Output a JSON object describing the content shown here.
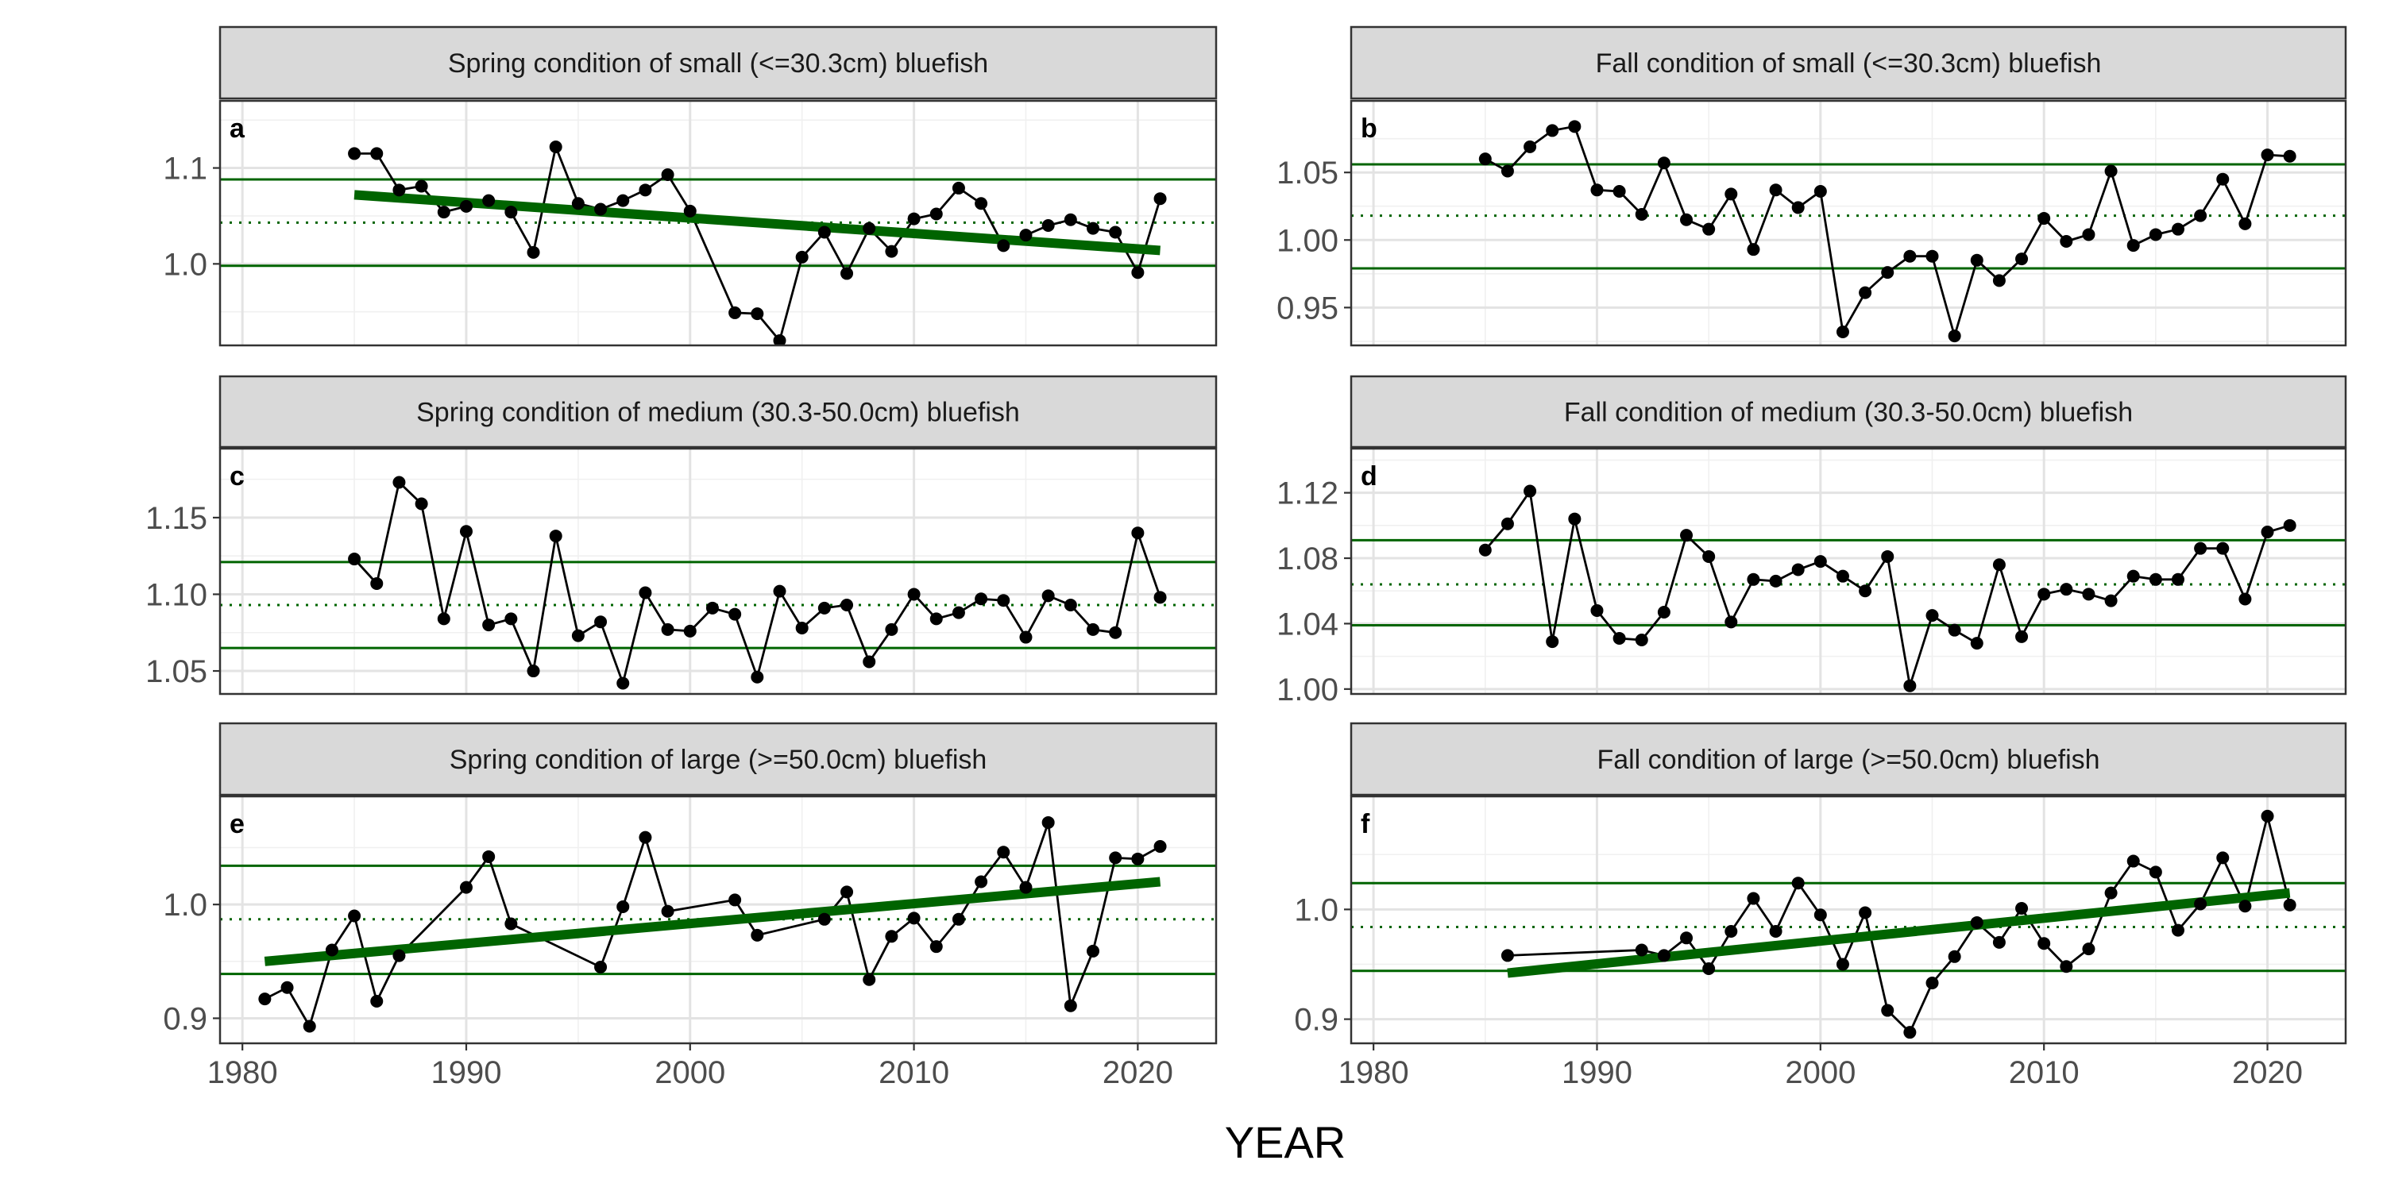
{
  "figure": {
    "x_axis_title": "YEAR"
  },
  "chart_data": [
    {
      "id": "a",
      "type": "line",
      "title": "Spring condition of small (<=30.3cm) bluefish",
      "panel_label": "a",
      "xlim": [
        1979,
        2023.5
      ],
      "x_ticks": [
        1980,
        1990,
        2000,
        2010,
        2020
      ],
      "ylim": [
        0.915,
        1.17
      ],
      "y_ticks": [
        1.0,
        1.1
      ],
      "y_tick_labels": [
        "1.0",
        "1.1"
      ],
      "reference_lines": {
        "upper": 1.088,
        "mean": 1.043,
        "lower": 0.998
      },
      "trend": {
        "x": [
          1985,
          2021
        ],
        "y": [
          1.072,
          1.014
        ]
      },
      "series": [
        {
          "x": [
            1985,
            1986,
            1987,
            1988,
            1989,
            1990,
            1991,
            1992,
            1993,
            1994,
            1995,
            1996,
            1997,
            1998,
            1999,
            2000,
            2002,
            2003,
            2004,
            2005,
            2006,
            2007,
            2008,
            2009,
            2010,
            2011,
            2012,
            2013,
            2014,
            2015,
            2016,
            2017,
            2018,
            2019,
            2020,
            2021
          ],
          "y": [
            1.115,
            1.115,
            1.077,
            1.081,
            1.054,
            1.06,
            1.066,
            1.054,
            1.012,
            1.122,
            1.063,
            1.057,
            1.066,
            1.077,
            1.093,
            1.055,
            0.949,
            0.948,
            0.92,
            1.007,
            1.033,
            0.99,
            1.037,
            1.013,
            1.047,
            1.052,
            1.079,
            1.063,
            1.019,
            1.03,
            1.04,
            1.046,
            1.037,
            1.033,
            0.991,
            1.068
          ]
        }
      ],
      "colors": {
        "reference": "#006400",
        "series": "#000000"
      }
    },
    {
      "id": "b",
      "type": "line",
      "title": "Fall condition of small (<=30.3cm) bluefish",
      "panel_label": "b",
      "xlim": [
        1979,
        2023.5
      ],
      "x_ticks": [
        1980,
        1990,
        2000,
        2010,
        2020
      ],
      "ylim": [
        0.922,
        1.103
      ],
      "y_ticks": [
        0.95,
        1.0,
        1.05
      ],
      "y_tick_labels": [
        "0.95",
        "1.00",
        "1.05"
      ],
      "reference_lines": {
        "upper": 1.056,
        "mean": 1.018,
        "lower": 0.979
      },
      "trend": null,
      "series": [
        {
          "x": [
            1985,
            1986,
            1987,
            1988,
            1989,
            1990,
            1991,
            1992,
            1993,
            1994,
            1995,
            1996,
            1997,
            1998,
            1999,
            2000,
            2001,
            2002,
            2003,
            2004,
            2005,
            2006,
            2007,
            2008,
            2009,
            2010,
            2011,
            2012,
            2013,
            2014,
            2015,
            2016,
            2017,
            2018,
            2019,
            2020,
            2021
          ],
          "y": [
            1.06,
            1.051,
            1.069,
            1.081,
            1.084,
            1.037,
            1.036,
            1.019,
            1.057,
            1.015,
            1.008,
            1.034,
            0.993,
            1.037,
            1.024,
            1.036,
            0.932,
            0.961,
            0.976,
            0.988,
            0.988,
            0.929,
            0.985,
            0.97,
            0.986,
            1.016,
            0.999,
            1.004,
            1.051,
            0.996,
            1.004,
            1.008,
            1.018,
            1.045,
            1.012,
            1.063,
            1.062
          ]
        }
      ],
      "colors": {
        "reference": "#006400",
        "series": "#000000"
      }
    },
    {
      "id": "c",
      "type": "line",
      "title": "Spring condition of medium (30.3-50.0cm) bluefish",
      "panel_label": "c",
      "xlim": [
        1979,
        2023.5
      ],
      "x_ticks": [
        1980,
        1990,
        2000,
        2010,
        2020
      ],
      "ylim": [
        1.035,
        1.195
      ],
      "y_ticks": [
        1.05,
        1.1,
        1.15
      ],
      "y_tick_labels": [
        "1.05",
        "1.10",
        "1.15"
      ],
      "reference_lines": {
        "upper": 1.121,
        "mean": 1.093,
        "lower": 1.065
      },
      "trend": null,
      "series": [
        {
          "x": [
            1985,
            1986,
            1987,
            1988,
            1989,
            1990,
            1991,
            1992,
            1993,
            1994,
            1995,
            1996,
            1997,
            1998,
            1999,
            2000,
            2001,
            2002,
            2003,
            2004,
            2005,
            2006,
            2007,
            2008,
            2009,
            2010,
            2011,
            2012,
            2013,
            2014,
            2015,
            2016,
            2017,
            2018,
            2019,
            2020,
            2021
          ],
          "y": [
            1.123,
            1.107,
            1.173,
            1.159,
            1.084,
            1.141,
            1.08,
            1.084,
            1.05,
            1.138,
            1.073,
            1.082,
            1.042,
            1.101,
            1.077,
            1.076,
            1.091,
            1.087,
            1.046,
            1.102,
            1.078,
            1.091,
            1.093,
            1.056,
            1.077,
            1.1,
            1.084,
            1.088,
            1.097,
            1.096,
            1.072,
            1.099,
            1.093,
            1.077,
            1.075,
            1.14,
            1.098
          ]
        }
      ],
      "colors": {
        "reference": "#006400",
        "series": "#000000"
      }
    },
    {
      "id": "d",
      "type": "line",
      "title": "Fall condition of medium (30.3-50.0cm) bluefish",
      "panel_label": "d",
      "xlim": [
        1979,
        2023.5
      ],
      "x_ticks": [
        1980,
        1990,
        2000,
        2010,
        2020
      ],
      "ylim": [
        0.997,
        1.147
      ],
      "y_ticks": [
        1.0,
        1.04,
        1.08,
        1.12
      ],
      "y_tick_labels": [
        "1.00",
        "1.04",
        "1.08",
        "1.12"
      ],
      "reference_lines": {
        "upper": 1.091,
        "mean": 1.064,
        "lower": 1.039
      },
      "trend": null,
      "series": [
        {
          "x": [
            1985,
            1986,
            1987,
            1988,
            1989,
            1990,
            1991,
            1992,
            1993,
            1994,
            1995,
            1996,
            1997,
            1998,
            1999,
            2000,
            2001,
            2002,
            2003,
            2004,
            2005,
            2006,
            2007,
            2008,
            2009,
            2010,
            2011,
            2012,
            2013,
            2014,
            2015,
            2016,
            2017,
            2018,
            2019,
            2020,
            2021
          ],
          "y": [
            1.085,
            1.101,
            1.121,
            1.029,
            1.104,
            1.048,
            1.031,
            1.03,
            1.047,
            1.094,
            1.081,
            1.041,
            1.067,
            1.066,
            1.073,
            1.078,
            1.069,
            1.06,
            1.081,
            1.002,
            1.045,
            1.036,
            1.028,
            1.076,
            1.032,
            1.058,
            1.061,
            1.058,
            1.054,
            1.069,
            1.067,
            1.067,
            1.086,
            1.086,
            1.055,
            1.096,
            1.1
          ]
        }
      ],
      "colors": {
        "reference": "#006400",
        "series": "#000000"
      }
    },
    {
      "id": "e",
      "type": "line",
      "title": "Spring condition of large (>=50.0cm) bluefish",
      "panel_label": "e",
      "xlim": [
        1979,
        2023.5
      ],
      "x_ticks": [
        1980,
        1990,
        2000,
        2010,
        2020
      ],
      "ylim": [
        0.878,
        1.095
      ],
      "y_ticks": [
        0.9,
        1.0
      ],
      "y_tick_labels": [
        "0.9",
        "1.0"
      ],
      "reference_lines": {
        "upper": 1.034,
        "mean": 0.987,
        "lower": 0.939
      },
      "trend": {
        "x": [
          1981,
          2021
        ],
        "y": [
          0.95,
          1.02
        ]
      },
      "series": [
        {
          "x": [
            1981,
            1982,
            1983,
            1984,
            1985,
            1986,
            1987,
            1990,
            1991,
            1992,
            1996,
            1997,
            1998,
            1999,
            2002,
            2003,
            2006,
            2007,
            2008,
            2009,
            2010,
            2011,
            2012,
            2013,
            2014,
            2015,
            2016,
            2017,
            2018,
            2019,
            2020,
            2021
          ],
          "y": [
            0.917,
            0.927,
            0.893,
            0.96,
            0.99,
            0.915,
            0.955,
            1.015,
            1.042,
            0.983,
            0.945,
            0.998,
            1.059,
            0.994,
            1.004,
            0.973,
            0.987,
            1.011,
            0.934,
            0.972,
            0.988,
            0.963,
            0.987,
            1.02,
            1.046,
            1.015,
            1.072,
            0.911,
            0.959,
            1.041,
            1.04,
            1.051
          ]
        }
      ],
      "colors": {
        "reference": "#006400",
        "series": "#000000"
      }
    },
    {
      "id": "f",
      "type": "line",
      "title": "Fall condition of large (>=50.0cm) bluefish",
      "panel_label": "f",
      "xlim": [
        1979,
        2023.5
      ],
      "x_ticks": [
        1980,
        1990,
        2000,
        2010,
        2020
      ],
      "ylim": [
        0.878,
        1.103
      ],
      "y_ticks": [
        0.9,
        1.0
      ],
      "y_tick_labels": [
        "0.9",
        "1.0"
      ],
      "reference_lines": {
        "upper": 1.024,
        "mean": 0.984,
        "lower": 0.944
      },
      "trend": {
        "x": [
          1986,
          2021
        ],
        "y": [
          0.942,
          1.015
        ]
      },
      "series": [
        {
          "x": [
            1986,
            1992,
            1993,
            1994,
            1995,
            1996,
            1997,
            1998,
            1999,
            2000,
            2001,
            2002,
            2003,
            2004,
            2005,
            2006,
            2007,
            2008,
            2009,
            2010,
            2011,
            2012,
            2013,
            2014,
            2015,
            2016,
            2017,
            2018,
            2019,
            2020,
            2021
          ],
          "y": [
            0.958,
            0.963,
            0.958,
            0.974,
            0.946,
            0.98,
            1.01,
            0.98,
            1.024,
            0.995,
            0.95,
            0.997,
            0.908,
            0.888,
            0.933,
            0.957,
            0.988,
            0.97,
            1.001,
            0.969,
            0.948,
            0.964,
            1.015,
            1.044,
            1.034,
            0.981,
            1.005,
            1.047,
            1.003,
            1.085,
            1.004
          ]
        }
      ],
      "colors": {
        "reference": "#006400",
        "series": "#000000"
      }
    }
  ]
}
